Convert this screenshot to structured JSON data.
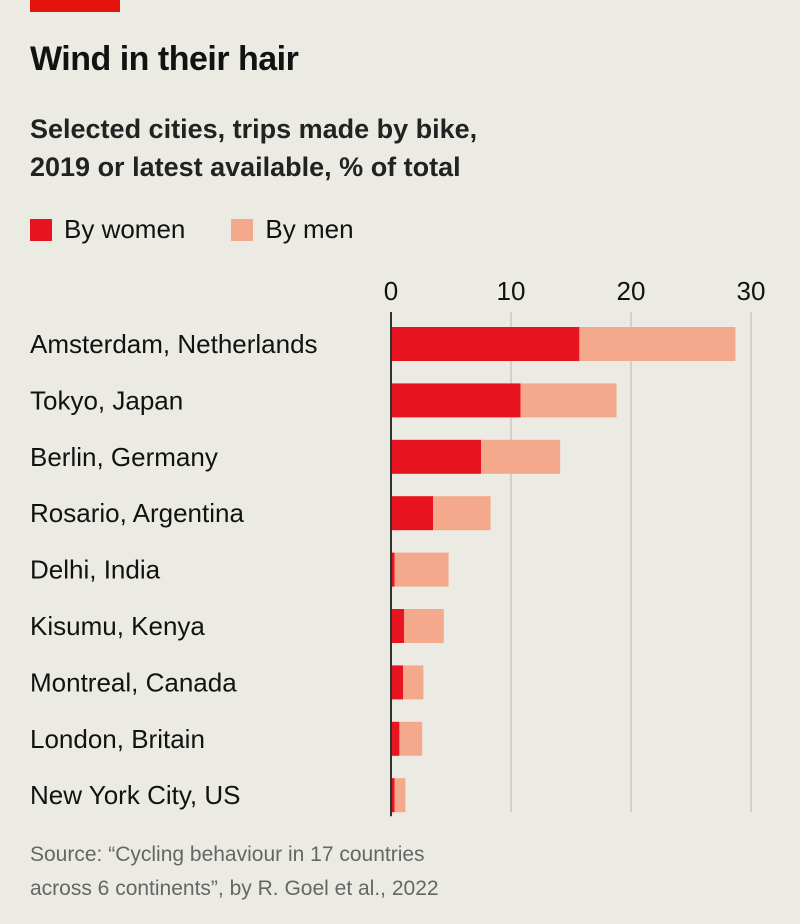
{
  "title": "Wind in their hair",
  "subtitle_lines": [
    "Selected cities, trips made by bike,",
    "2019 or latest available, % of total"
  ],
  "source_lines": [
    "Source: “Cycling behaviour in 17 countries",
    "across 6 continents”, by R. Goel et al., 2022"
  ],
  "colors": {
    "women": "#e8141f",
    "men": "#f5a98c",
    "background": "#ecebe3",
    "accent": "#e3120b"
  },
  "chart_data": {
    "type": "bar",
    "orientation": "horizontal",
    "stacked": true,
    "categories": [
      "Amsterdam, Netherlands",
      "Tokyo, Japan",
      "Berlin, Germany",
      "Rosario, Argentina",
      "Delhi, India",
      "Kisumu, Kenya",
      "Montreal, Canada",
      "London, Britain",
      "New York City, US"
    ],
    "series": [
      {
        "name": "By women",
        "values": [
          15.7,
          10.8,
          7.5,
          3.5,
          0.3,
          1.1,
          1.0,
          0.7,
          0.3
        ]
      },
      {
        "name": "By men",
        "values": [
          13.0,
          8.0,
          6.6,
          4.8,
          4.5,
          3.3,
          1.7,
          1.9,
          0.9
        ]
      }
    ],
    "xlim": [
      0,
      30
    ],
    "xticks": [
      "0",
      "10",
      "20",
      "30"
    ],
    "grid": true,
    "legend": "top-left"
  }
}
